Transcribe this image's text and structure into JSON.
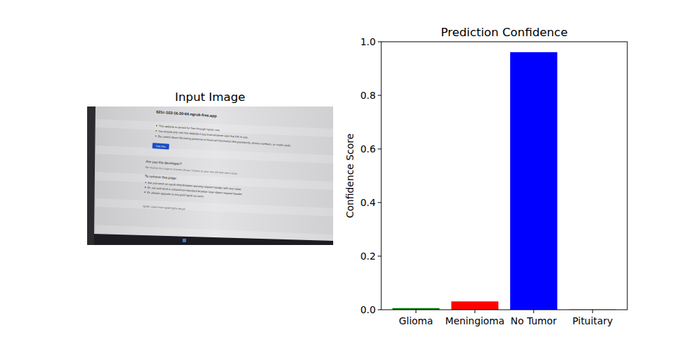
{
  "chart_data": {
    "type": "bar",
    "title": "Prediction Confidence",
    "y_label": "Confidence Score",
    "categories": [
      "Glioma",
      "Meningioma",
      "No Tumor",
      "Pituitary"
    ],
    "values": [
      0.006,
      0.031,
      0.961,
      0.002
    ],
    "colors": [
      "#008000",
      "#ff0000",
      "#0000ff",
      "#ffa500"
    ],
    "ylim": [
      0,
      1
    ],
    "yticks": [
      {
        "value": 0,
        "label": "0.0"
      },
      0.2,
      0.4,
      0.6,
      0.8,
      {
        "value": 1,
        "label": "1.0"
      }
    ],
    "grid": false
  },
  "input_image": {
    "title": "Input Image",
    "url": "621c-103-16-30-64.ngrok-free.app",
    "bullets": [
      "This website is served for free through ngrok.com.",
      "You should only visit this website if you trust whoever sent the link to you.",
      "Be careful about disclosing personal or financial information like passwords, phone numbers, or credit cards."
    ],
    "button": "Visit Site",
    "developer_heading": "Are you the developer?",
    "developer_note": "We display this page to prevent abuse. Visitors to your site will only see it once.",
    "remove_heading": "To remove this page:",
    "remove_steps": [
      "Set and send an ngrok-skip-browser-warning request header with any value.",
      "Or, set and send a custom/non-standard browser User-Agent request header.",
      "Or, please upgrade to any paid ngrok account."
    ],
    "footer": "ngrok: Learn how ngrok fights abuse"
  }
}
